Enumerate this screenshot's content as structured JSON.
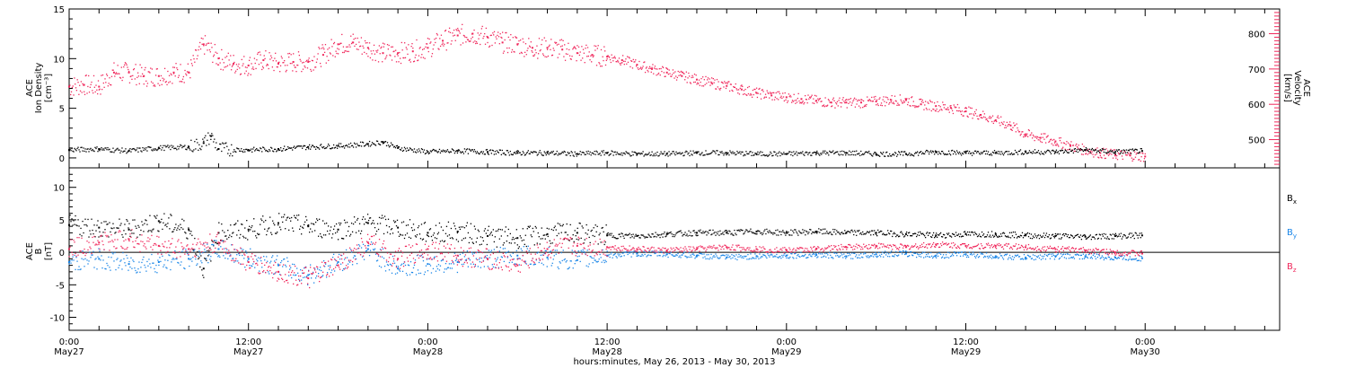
{
  "chart_data": [
    {
      "type": "scatter",
      "panel": "top",
      "ylabel_left": [
        "ACE",
        "Ion Density",
        "[cm⁻³]"
      ],
      "ylabel_right": [
        "ACE",
        "Velocity",
        "[km/s]"
      ],
      "ylim_left": [
        -1,
        15
      ],
      "yticks_left": [
        0,
        5,
        10,
        15
      ],
      "ylim_right": [
        420,
        870
      ],
      "yticks_right": [
        500,
        600,
        700,
        800
      ],
      "series": [
        {
          "color": "#f0285c",
          "axis": "right",
          "x": [
            0,
            1,
            2,
            3,
            4,
            5,
            6,
            7,
            8,
            9,
            10,
            11,
            12,
            13,
            14,
            15,
            16,
            17,
            18,
            19,
            20,
            21,
            22,
            23,
            24,
            25,
            26,
            27,
            28,
            29,
            30,
            31,
            32,
            33,
            34,
            35,
            36,
            37,
            38,
            39,
            40,
            41,
            42,
            43,
            44,
            45,
            46,
            47,
            48,
            49,
            50,
            51,
            52,
            53,
            54,
            55,
            56,
            57,
            58,
            59,
            60,
            61,
            62,
            63,
            64,
            65,
            66,
            67,
            68,
            69,
            70,
            71,
            72
          ],
          "values": [
            650,
            655,
            650,
            690,
            690,
            680,
            680,
            690,
            690,
            770,
            730,
            715,
            710,
            725,
            715,
            720,
            720,
            740,
            770,
            775,
            760,
            745,
            745,
            750,
            760,
            780,
            795,
            800,
            790,
            775,
            770,
            760,
            760,
            755,
            745,
            740,
            735,
            725,
            712,
            700,
            690,
            680,
            670,
            660,
            652,
            642,
            632,
            625,
            620,
            615,
            610,
            605,
            605,
            605,
            608,
            612,
            612,
            600,
            595,
            590,
            580,
            570,
            555,
            540,
            515,
            505,
            495,
            482,
            470,
            462,
            457,
            455,
            452
          ]
        },
        {
          "color": "#000000",
          "axis": "left",
          "x": [
            0,
            2,
            4,
            6,
            8,
            9,
            9.5,
            10,
            12,
            14,
            16,
            18,
            20,
            21,
            22,
            24,
            26,
            28,
            30,
            32,
            34,
            36,
            38,
            40,
            42,
            44,
            46,
            48,
            50,
            52,
            54,
            56,
            58,
            60,
            62,
            64,
            66,
            68,
            70,
            71.8
          ],
          "values": [
            0.8,
            0.9,
            0.7,
            1.0,
            1.1,
            1.5,
            2.2,
            0.9,
            0.8,
            0.9,
            1.1,
            1.2,
            1.4,
            1.6,
            1.0,
            0.6,
            0.7,
            0.6,
            0.5,
            0.5,
            0.4,
            0.5,
            0.4,
            0.4,
            0.5,
            0.5,
            0.4,
            0.4,
            0.5,
            0.5,
            0.4,
            0.4,
            0.6,
            0.5,
            0.5,
            0.6,
            0.6,
            0.8,
            0.6,
            0.7
          ]
        }
      ]
    },
    {
      "type": "scatter",
      "panel": "bottom",
      "ylabel_left": [
        "ACE",
        "B",
        "[nT]"
      ],
      "ylim": [
        -12,
        13
      ],
      "yticks": [
        -10,
        -5,
        0,
        5,
        10
      ],
      "legend_position": "right",
      "series": [
        {
          "name": "Bx",
          "color": "#000000",
          "x": [
            0,
            2,
            4,
            6,
            8,
            9,
            10,
            12,
            14,
            16,
            18,
            20,
            22,
            24,
            26,
            28,
            30,
            32,
            34,
            36,
            38,
            40,
            42,
            44,
            46,
            48,
            50,
            52,
            54,
            56,
            58,
            60,
            62,
            64,
            66,
            68,
            70,
            71.8
          ],
          "values": [
            4.2,
            3.8,
            3.5,
            4.8,
            3.5,
            -2.5,
            3.0,
            3.5,
            4.5,
            4.0,
            3.5,
            4.5,
            3.8,
            3.0,
            3.2,
            2.5,
            2.2,
            2.8,
            3.0,
            2.6,
            2.5,
            2.8,
            3.0,
            3.0,
            3.2,
            3.0,
            3.2,
            3.0,
            3.0,
            2.8,
            2.6,
            2.8,
            2.8,
            2.6,
            2.5,
            2.4,
            2.5,
            2.6
          ]
        },
        {
          "name": "By",
          "color": "#1a86e8",
          "x": [
            0,
            2,
            4,
            6,
            8,
            10,
            12,
            14,
            16,
            18,
            20,
            22,
            24,
            26,
            28,
            30,
            32,
            34,
            36,
            38,
            40,
            42,
            44,
            46,
            48,
            50,
            52,
            54,
            56,
            58,
            60,
            62,
            64,
            66,
            68,
            70,
            71.8
          ],
          "values": [
            -1.5,
            -1.0,
            -1.8,
            -1.5,
            -1.0,
            0.5,
            -1.0,
            -2.0,
            -3.5,
            -1.5,
            0.5,
            -2.5,
            -1.8,
            -1.5,
            -1.0,
            -0.5,
            -0.8,
            -1.2,
            -0.5,
            -0.2,
            -0.3,
            -0.5,
            -0.8,
            -0.6,
            -0.5,
            -0.4,
            -0.6,
            -0.3,
            -0.2,
            -0.5,
            -0.3,
            -0.6,
            -0.8,
            -0.6,
            -0.6,
            -0.8,
            -0.9
          ]
        },
        {
          "name": "Bz",
          "color": "#f0285c",
          "x": [
            0,
            2,
            4,
            6,
            8,
            10,
            12,
            14,
            16,
            18,
            20,
            22,
            24,
            26,
            28,
            30,
            32,
            34,
            36,
            38,
            40,
            42,
            44,
            46,
            48,
            50,
            52,
            54,
            56,
            58,
            60,
            62,
            64,
            66,
            68,
            70,
            71.8
          ],
          "values": [
            0.5,
            1.5,
            2.0,
            1.0,
            0.5,
            1.5,
            -1.5,
            -3.0,
            -4.0,
            -2.0,
            1.5,
            -1.0,
            0.5,
            -0.5,
            -1.0,
            -2.0,
            0.5,
            1.0,
            0.8,
            0.5,
            0.3,
            0.5,
            0.8,
            0.5,
            0.3,
            0.5,
            0.8,
            1.0,
            0.8,
            1.2,
            1.0,
            1.0,
            0.8,
            0.5,
            0.3,
            0.0,
            -0.2
          ]
        }
      ]
    }
  ],
  "legend": {
    "bx": {
      "letter": "B",
      "sub": "x"
    },
    "by": {
      "letter": "B",
      "sub": "y"
    },
    "bz": {
      "letter": "B",
      "sub": "z"
    }
  },
  "x_axis": {
    "range_hours": [
      0,
      81
    ],
    "tick_labels": [
      {
        "hour": 0,
        "time": "0:00",
        "day": "May27"
      },
      {
        "hour": 12,
        "time": "12:00",
        "day": "May27"
      },
      {
        "hour": 24,
        "time": "0:00",
        "day": "May28"
      },
      {
        "hour": 36,
        "time": "12:00",
        "day": "May28"
      },
      {
        "hour": 48,
        "time": "0:00",
        "day": "May29"
      },
      {
        "hour": 60,
        "time": "12:00",
        "day": "May29"
      },
      {
        "hour": 72,
        "time": "0:00",
        "day": "May30"
      }
    ],
    "title": "hours:minutes, May 26, 2013 - May 30, 2013"
  },
  "colors": {
    "velocity": "#f0285c",
    "density": "#000000",
    "bx": "#000000",
    "by": "#1a86e8",
    "bz": "#f0285c",
    "frame": "#000000"
  }
}
